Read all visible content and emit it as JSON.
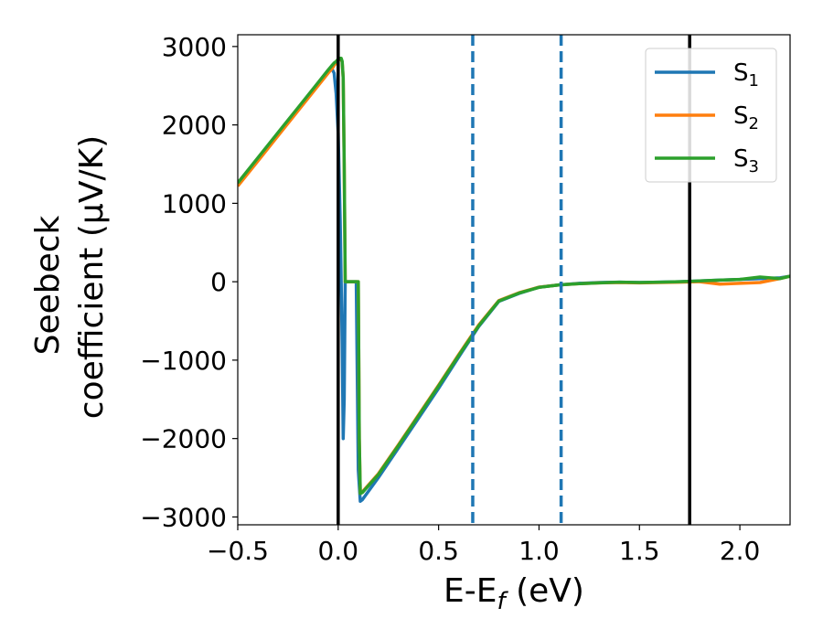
{
  "chart_data": {
    "type": "line",
    "title": "",
    "xlabel_parts": [
      "E-E",
      "f",
      " (eV)"
    ],
    "ylabel_lines": [
      "Seebeck",
      "coefficient  (μV/K)"
    ],
    "xlim": [
      -0.5,
      2.25
    ],
    "ylim": [
      -3100,
      3150
    ],
    "x_ticks": [
      -0.5,
      0.0,
      0.5,
      1.0,
      1.5,
      2.0
    ],
    "x_tick_labels": [
      "−0.5",
      "0.0",
      "0.5",
      "1.0",
      "1.5",
      "2.0"
    ],
    "y_ticks": [
      -3000,
      -2000,
      -1000,
      0,
      1000,
      2000,
      3000
    ],
    "y_tick_labels": [
      "−3000",
      "−2000",
      "−1000",
      "0",
      "1000",
      "2000",
      "3000"
    ],
    "grid": false,
    "legend_position": "top-right",
    "vertical_lines": [
      {
        "x": 0.0,
        "style": "solid",
        "color": "#000000"
      },
      {
        "x": 1.75,
        "style": "solid",
        "color": "#000000"
      },
      {
        "x": 0.67,
        "style": "dashed",
        "color": "#1f77b4"
      },
      {
        "x": 1.11,
        "style": "dashed",
        "color": "#1f77b4"
      }
    ],
    "series": [
      {
        "name": "S1",
        "label_base": "S",
        "label_sub": "1",
        "color": "#1f77b4",
        "x": [
          -0.5,
          -0.4,
          -0.3,
          -0.2,
          -0.1,
          -0.05,
          -0.03,
          -0.02,
          -0.01,
          0.0,
          0.01,
          0.02,
          0.025,
          0.03,
          0.035,
          0.04,
          0.09,
          0.1,
          0.11,
          0.12,
          0.2,
          0.3,
          0.4,
          0.5,
          0.6,
          0.7,
          0.8,
          0.9,
          1.0,
          1.1,
          1.2,
          1.3,
          1.4,
          1.5,
          1.6,
          1.7,
          1.8,
          1.9,
          2.0,
          2.1,
          2.2,
          2.25
        ],
        "y": [
          1250,
          1560,
          1880,
          2200,
          2520,
          2680,
          2710,
          2660,
          2400,
          1900,
          800,
          -800,
          -2000,
          -1500,
          0,
          0,
          0,
          -2400,
          -2800,
          -2780,
          -2500,
          -2120,
          -1740,
          -1360,
          -960,
          -570,
          -250,
          -150,
          -70,
          -40,
          -20,
          -10,
          -5,
          -10,
          -5,
          0,
          10,
          20,
          30,
          40,
          50,
          70
        ]
      },
      {
        "name": "S2",
        "label_base": "S",
        "label_sub": "2",
        "color": "#ff7f0e",
        "x": [
          -0.5,
          -0.4,
          -0.3,
          -0.2,
          -0.1,
          -0.05,
          -0.03,
          -0.02,
          -0.01,
          0.0,
          0.01,
          0.015,
          0.02,
          0.025,
          0.03,
          0.035,
          0.04,
          0.1,
          0.105,
          0.11,
          0.12,
          0.2,
          0.3,
          0.4,
          0.5,
          0.6,
          0.7,
          0.8,
          0.9,
          1.0,
          1.1,
          1.2,
          1.3,
          1.4,
          1.5,
          1.6,
          1.7,
          1.8,
          1.9,
          2.0,
          2.1,
          2.2,
          2.25
        ],
        "y": [
          1220,
          1540,
          1860,
          2180,
          2500,
          2660,
          2720,
          2760,
          2790,
          2820,
          2840,
          2840,
          2800,
          2600,
          1500,
          0,
          0,
          0,
          -2000,
          -2700,
          -2680,
          -2450,
          -2080,
          -1700,
          -1320,
          -930,
          -550,
          -240,
          -140,
          -70,
          -40,
          -25,
          -15,
          -10,
          -15,
          -10,
          -5,
          0,
          -30,
          -20,
          -10,
          40,
          70
        ]
      },
      {
        "name": "S3",
        "label_base": "S",
        "label_sub": "3",
        "color": "#2ca02c",
        "x": [
          -0.5,
          -0.4,
          -0.3,
          -0.2,
          -0.1,
          -0.05,
          -0.03,
          -0.02,
          -0.01,
          0.0,
          0.01,
          0.015,
          0.02,
          0.025,
          0.03,
          0.035,
          0.04,
          0.1,
          0.105,
          0.11,
          0.12,
          0.2,
          0.3,
          0.4,
          0.5,
          0.6,
          0.7,
          0.8,
          0.9,
          1.0,
          1.1,
          1.2,
          1.3,
          1.4,
          1.5,
          1.6,
          1.7,
          1.8,
          1.9,
          2.0,
          2.1,
          2.2,
          2.25
        ],
        "y": [
          1260,
          1580,
          1900,
          2220,
          2540,
          2700,
          2760,
          2790,
          2810,
          2840,
          2850,
          2850,
          2810,
          2600,
          1500,
          0,
          0,
          0,
          -2000,
          -2700,
          -2690,
          -2460,
          -2090,
          -1710,
          -1330,
          -940,
          -560,
          -245,
          -145,
          -72,
          -40,
          -25,
          -15,
          -5,
          -10,
          -5,
          0,
          10,
          20,
          30,
          60,
          40,
          70
        ]
      }
    ]
  }
}
